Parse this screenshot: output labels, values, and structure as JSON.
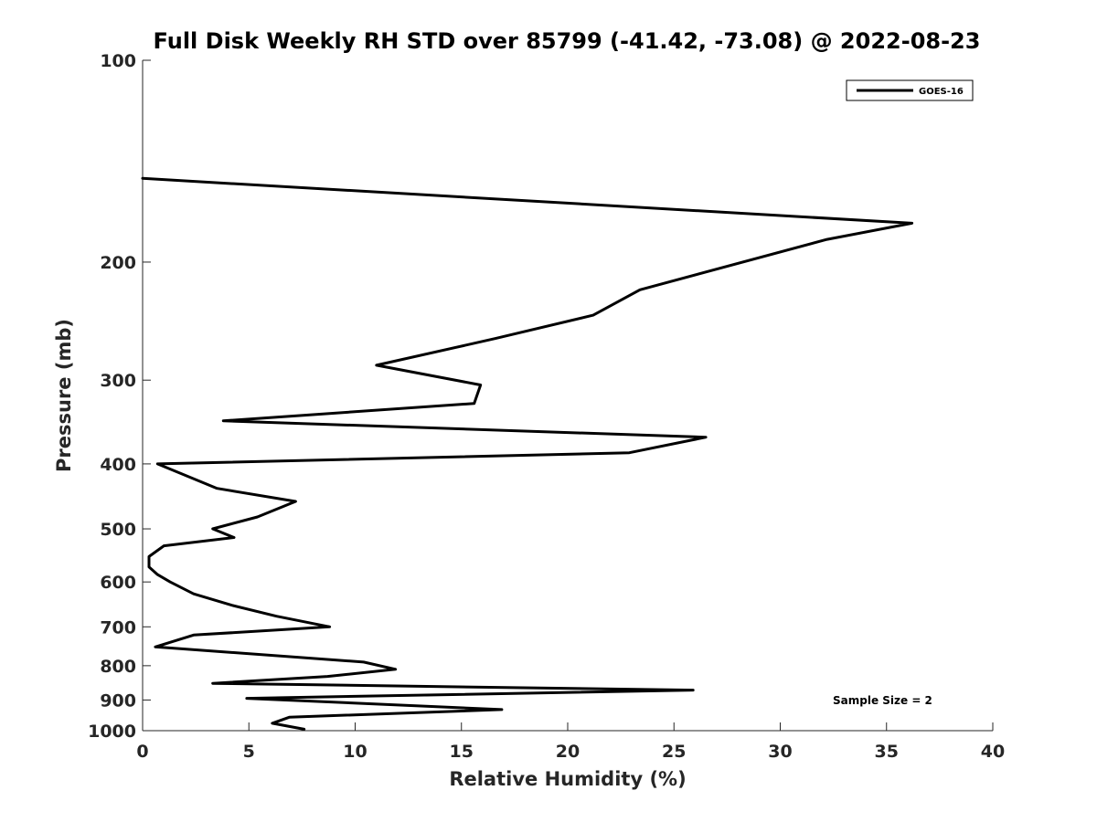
{
  "chart_data": {
    "type": "line",
    "title": "Full Disk Weekly RH STD over 85799 (-41.42, -73.08) @ 2022-08-23",
    "xlabel": "Relative Humidity (%)",
    "ylabel": "Pressure (mb)",
    "xlim": [
      0,
      40
    ],
    "ylim": [
      100,
      1000
    ],
    "yscale": "log",
    "y_inverted": true,
    "x_ticks": [
      0,
      5,
      10,
      15,
      20,
      25,
      30,
      35,
      40
    ],
    "y_ticks": [
      100,
      200,
      300,
      400,
      500,
      600,
      700,
      800,
      900,
      1000
    ],
    "grid": false,
    "legend_position": "top-right",
    "annotation": "Sample Size = 2",
    "series": [
      {
        "name": "GOES-16",
        "color": "#000000",
        "x": [
          0,
          36.2,
          32.2,
          23.4,
          21.2,
          16.6,
          11.0,
          15.9,
          15.6,
          3.8,
          26.5,
          22.9,
          0.7,
          3.5,
          7.2,
          5.4,
          3.3,
          4.3,
          1.0,
          0.3,
          0.3,
          0.7,
          1.3,
          2.4,
          4.2,
          6.3,
          8.8,
          2.4,
          0.6,
          10.4,
          11.9,
          8.7,
          3.3,
          25.9,
          4.9,
          16.9,
          6.9,
          6.1,
          7.6
        ],
        "y": [
          150,
          175,
          185,
          220,
          240,
          260,
          285,
          305,
          325,
          345,
          365,
          385,
          400,
          435,
          455,
          480,
          500,
          515,
          530,
          550,
          570,
          585,
          600,
          625,
          650,
          675,
          700,
          720,
          750,
          790,
          810,
          830,
          850,
          870,
          895,
          930,
          955,
          975,
          995
        ]
      }
    ]
  }
}
